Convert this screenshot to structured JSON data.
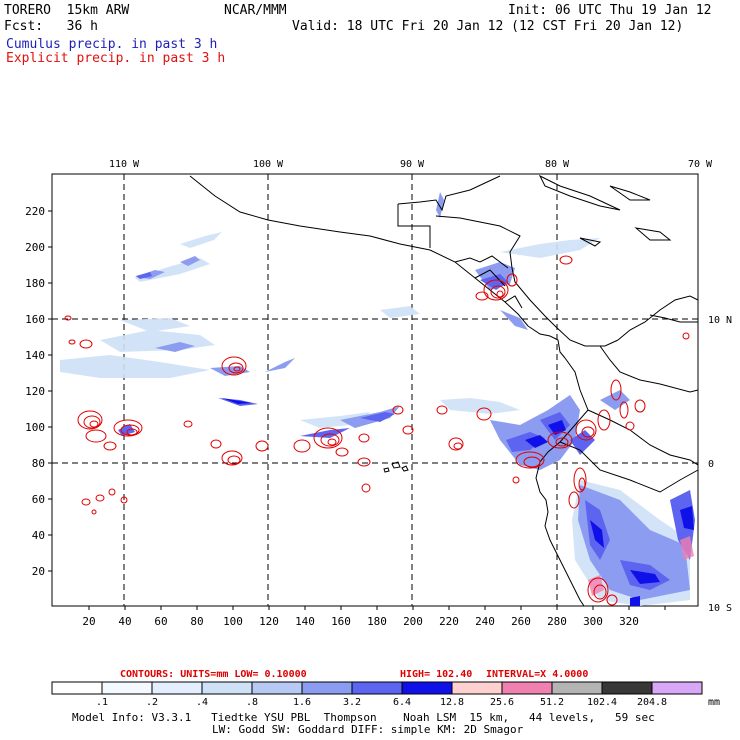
{
  "header": {
    "model": "TORERO  15km ARW",
    "org": "NCAR/MMM",
    "init": "Init: 06 UTC Thu 19 Jan 12",
    "fcst": "Fcst:   36 h",
    "valid": "Valid: 18 UTC Fri 20 Jan 12 (12 CST Fri 20 Jan 12)",
    "field_cumulus": "Cumulus precip. in past 3 h",
    "field_explicit": "Explicit precip. in past 3 h"
  },
  "colors": {
    "cumulus": "#1f1fb8",
    "explicit": "#e01010",
    "contour": "#e00000",
    "coast": "#000000",
    "grid": "#000000"
  },
  "map": {
    "x_ticks": [
      "20",
      "40",
      "60",
      "80",
      "100",
      "120",
      "140",
      "160",
      "180",
      "200",
      "220",
      "240",
      "260",
      "280",
      "300",
      "320"
    ],
    "y_ticks": [
      "20",
      "40",
      "60",
      "80",
      "100",
      "120",
      "140",
      "160",
      "180",
      "200",
      "220"
    ],
    "lon_labels": [
      "110 W",
      "100 W",
      "90 W",
      "80 W",
      "70 W"
    ],
    "lat_labels": [
      "10 N",
      "0",
      "10 S"
    ]
  },
  "contour_info": {
    "contours": "CONTOURS:  UNITS=mm  LOW= 0.10000",
    "high": "HIGH=  102.40",
    "interval": "INTERVAL=X  4.0000"
  },
  "colorbar": {
    "labels": [
      ".1",
      ".2",
      ".4",
      ".8",
      "1.6",
      "3.2",
      "6.4",
      "12.8",
      "25.6",
      "51.2",
      "102.4",
      "204.8"
    ],
    "unit": "mm",
    "colors": [
      "#ffffff",
      "#f4f8ff",
      "#e3efff",
      "#cfe1f7",
      "#b7c9f5",
      "#8c9cf0",
      "#5c64f0",
      "#1010e8",
      "#ffd0d0",
      "#f080b0",
      "#b4b4b4",
      "#383838",
      "#d8a8f8"
    ]
  },
  "footer": {
    "line1": "Model Info: V3.3.1   Tiedtke YSU PBL  Thompson    Noah LSM  15 km,   44 levels,   59 sec",
    "line2": "LW: Godd SW: Goddard DIFF: simple KM: 2D Smagor"
  }
}
